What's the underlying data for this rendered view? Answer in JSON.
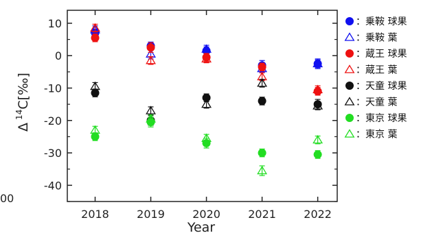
{
  "chart_data": {
    "type": "scatter",
    "xlabel": "Year",
    "ylabel": "Δ14C[‰]",
    "ylabel_parts": {
      "delta": "Δ",
      "superscript": "14",
      "rest": "C[‰]"
    },
    "x": [
      2018,
      2019,
      2020,
      2021,
      2022
    ],
    "xticks": [
      "2018",
      "2019",
      "2020",
      "2021",
      "2022"
    ],
    "xlim": [
      2017.5,
      2022.35
    ],
    "yticks": [
      10,
      0,
      -10,
      -20,
      -30,
      -40
    ],
    "ylim": [
      -45,
      14
    ],
    "grid": false,
    "legend_position": "right",
    "series": [
      {
        "name": "：乗鞍 球果",
        "marker": "circle",
        "filled": true,
        "color": "#1010f0",
        "values": [
          7,
          3,
          1.5,
          -3,
          -2.5
        ],
        "errors": [
          1.2,
          1.2,
          1.2,
          1.5,
          1.2
        ]
      },
      {
        "name": "：乗鞍 葉",
        "marker": "triangle",
        "filled": false,
        "color": "#1010f0",
        "values": [
          8,
          0.5,
          2,
          -4,
          -2.5
        ],
        "errors": [
          1.2,
          1.5,
          1.2,
          1.2,
          1.5
        ]
      },
      {
        "name": "：蔵王 球果",
        "marker": "circle",
        "filled": true,
        "color": "#ee1111",
        "values": [
          5.5,
          2.5,
          -0.5,
          -3.5,
          -11
        ],
        "errors": [
          1.2,
          1.5,
          1.2,
          1.2,
          1.2
        ]
      },
      {
        "name": "：蔵王 葉",
        "marker": "triangle",
        "filled": false,
        "color": "#ee1111",
        "values": [
          8.5,
          -1.5,
          -1,
          -6.5,
          -10.5
        ],
        "errors": [
          1.2,
          1.2,
          1.2,
          1.2,
          1.2
        ]
      },
      {
        "name": "：天童 球果",
        "marker": "circle",
        "filled": true,
        "color": "#111111",
        "values": [
          -11.5,
          -20,
          -13,
          -14,
          -15
        ],
        "errors": [
          1.2,
          1.5,
          1.2,
          1.2,
          1.5
        ]
      },
      {
        "name": "：天童 葉",
        "marker": "triangle",
        "filled": false,
        "color": "#111111",
        "values": [
          -9.5,
          -17,
          -15,
          -8.5,
          -15.5
        ],
        "errors": [
          1.2,
          1.2,
          1.2,
          1.2,
          1.2
        ]
      },
      {
        "name": "：東京 球果",
        "marker": "circle",
        "filled": true,
        "color": "#22dd22",
        "values": [
          -25,
          -20.5,
          -27,
          -30,
          -30.5
        ],
        "errors": [
          1.2,
          1.5,
          1.5,
          1.2,
          1.2
        ]
      },
      {
        "name": "：東京 葉",
        "marker": "triangle",
        "filled": false,
        "color": "#22dd22",
        "values": [
          -23,
          -19.5,
          -25.5,
          -35.5,
          -26
        ],
        "errors": [
          1.2,
          1.2,
          1.2,
          1.5,
          1.2
        ]
      }
    ],
    "cropped_left_label": "00"
  }
}
